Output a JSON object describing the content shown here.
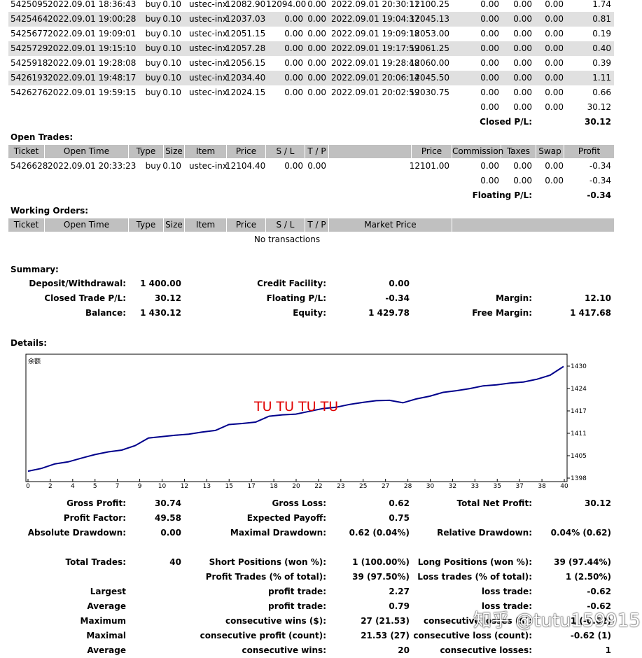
{
  "closed_rows": [
    {
      "ticket": "5425095",
      "open_time": "2022.09.01 18:36:43",
      "type": "buy",
      "size": "0.10",
      "item": "ustec-inx",
      "price": "12082.90",
      "sl": "12094.00",
      "tp": "0.00",
      "close_time": "2022.09.01 20:30:11",
      "close_price": "12100.25",
      "commission": "0.00",
      "taxes": "0.00",
      "swap": "0.00",
      "profit": "1.74"
    },
    {
      "ticket": "5425464",
      "open_time": "2022.09.01 19:00:28",
      "type": "buy",
      "size": "0.10",
      "item": "ustec-inx",
      "price": "12037.03",
      "sl": "0.00",
      "tp": "0.00",
      "close_time": "2022.09.01 19:04:37",
      "close_price": "12045.13",
      "commission": "0.00",
      "taxes": "0.00",
      "swap": "0.00",
      "profit": "0.81"
    },
    {
      "ticket": "5425677",
      "open_time": "2022.09.01 19:09:01",
      "type": "buy",
      "size": "0.10",
      "item": "ustec-inx",
      "price": "12051.15",
      "sl": "0.00",
      "tp": "0.00",
      "close_time": "2022.09.01 19:09:18",
      "close_price": "12053.00",
      "commission": "0.00",
      "taxes": "0.00",
      "swap": "0.00",
      "profit": "0.19"
    },
    {
      "ticket": "5425729",
      "open_time": "2022.09.01 19:15:10",
      "type": "buy",
      "size": "0.10",
      "item": "ustec-inx",
      "price": "12057.28",
      "sl": "0.00",
      "tp": "0.00",
      "close_time": "2022.09.01 19:17:59",
      "close_price": "12061.25",
      "commission": "0.00",
      "taxes": "0.00",
      "swap": "0.00",
      "profit": "0.40"
    },
    {
      "ticket": "5425918",
      "open_time": "2022.09.01 19:28:08",
      "type": "buy",
      "size": "0.10",
      "item": "ustec-inx",
      "price": "12056.15",
      "sl": "0.00",
      "tp": "0.00",
      "close_time": "2022.09.01 19:28:48",
      "close_price": "12060.00",
      "commission": "0.00",
      "taxes": "0.00",
      "swap": "0.00",
      "profit": "0.39"
    },
    {
      "ticket": "5426193",
      "open_time": "2022.09.01 19:48:17",
      "type": "buy",
      "size": "0.10",
      "item": "ustec-inx",
      "price": "12034.40",
      "sl": "0.00",
      "tp": "0.00",
      "close_time": "2022.09.01 20:06:14",
      "close_price": "12045.50",
      "commission": "0.00",
      "taxes": "0.00",
      "swap": "0.00",
      "profit": "1.11"
    },
    {
      "ticket": "5426276",
      "open_time": "2022.09.01 19:59:15",
      "type": "buy",
      "size": "0.10",
      "item": "ustec-inx",
      "price": "12024.15",
      "sl": "0.00",
      "tp": "0.00",
      "close_time": "2022.09.01 20:02:59",
      "close_price": "12030.75",
      "commission": "0.00",
      "taxes": "0.00",
      "swap": "0.00",
      "profit": "0.66"
    }
  ],
  "closed_totals": {
    "commission": "0.00",
    "taxes": "0.00",
    "swap": "0.00",
    "profit": "30.12",
    "label": "Closed P/L:",
    "value": "30.12"
  },
  "open_trades": {
    "title": "Open Trades:",
    "headers": {
      "ticket": "Ticket",
      "open_time": "Open Time",
      "type": "Type",
      "size": "Size",
      "item": "Item",
      "price": "Price",
      "sl": "S / L",
      "tp": "T / P",
      "price2": "Price",
      "commission": "Commission",
      "taxes": "Taxes",
      "swap": "Swap",
      "profit": "Profit"
    },
    "row": {
      "ticket": "5426628",
      "open_time": "2022.09.01 20:33:23",
      "type": "buy",
      "size": "0.10",
      "item": "ustec-inx",
      "price": "12104.40",
      "sl": "0.00",
      "tp": "0.00",
      "price2": "12101.00",
      "commission": "0.00",
      "taxes": "0.00",
      "swap": "0.00",
      "profit": "-0.34"
    },
    "totals": {
      "commission": "0.00",
      "taxes": "0.00",
      "swap": "0.00",
      "profit": "-0.34"
    },
    "floating_label": "Floating P/L:",
    "floating_value": "-0.34"
  },
  "working_orders": {
    "title": "Working Orders:",
    "headers": {
      "ticket": "Ticket",
      "open_time": "Open Time",
      "type": "Type",
      "size": "Size",
      "item": "Item",
      "price": "Price",
      "sl": "S / L",
      "tp": "T / P",
      "market_price": "Market Price"
    },
    "empty": "No transactions"
  },
  "summary": {
    "title": "Summary:",
    "deposit_label": "Deposit/Withdrawal:",
    "deposit_value": "1 400.00",
    "credit_label": "Credit Facility:",
    "credit_value": "0.00",
    "closed_label": "Closed Trade P/L:",
    "closed_value": "30.12",
    "floating_label": "Floating P/L:",
    "floating_value": "-0.34",
    "margin_label": "Margin:",
    "margin_value": "12.10",
    "balance_label": "Balance:",
    "balance_value": "1 430.12",
    "equity_label": "Equity:",
    "equity_value": "1 429.78",
    "free_margin_label": "Free Margin:",
    "free_margin_value": "1 417.68"
  },
  "details_title": "Details:",
  "chart_data": {
    "type": "line",
    "title": "余额",
    "x": [
      0,
      1,
      2,
      3,
      4,
      5,
      6,
      7,
      8,
      9,
      10,
      11,
      12,
      13,
      14,
      15,
      16,
      17,
      18,
      19,
      20,
      21,
      22,
      23,
      24,
      25,
      26,
      27,
      28,
      29,
      30,
      31,
      32,
      33,
      34,
      35,
      36,
      37,
      38,
      39,
      40
    ],
    "y": [
      1399.8,
      1400.6,
      1401.9,
      1402.5,
      1403.6,
      1404.6,
      1405.4,
      1405.9,
      1407.2,
      1409.4,
      1409.8,
      1410.2,
      1410.5,
      1411.1,
      1411.6,
      1413.3,
      1413.6,
      1414.0,
      1415.7,
      1416.1,
      1416.3,
      1417.1,
      1417.9,
      1418.3,
      1419.1,
      1419.7,
      1420.2,
      1420.3,
      1419.6,
      1420.7,
      1421.5,
      1422.6,
      1423.1,
      1423.7,
      1424.5,
      1424.8,
      1425.3,
      1425.6,
      1426.4,
      1427.6,
      1430.1
    ],
    "x_ticks": [
      "0",
      "2",
      "4",
      "5",
      "7",
      "9",
      "10",
      "12",
      "13",
      "15",
      "17",
      "18",
      "20",
      "22",
      "23",
      "25",
      "27",
      "28",
      "30",
      "32",
      "33",
      "35",
      "37",
      "38",
      "40"
    ],
    "y_ticks": [
      "1430",
      "1424",
      "1417",
      "1411",
      "1405",
      "1398"
    ],
    "ylim": [
      1398,
      1430
    ],
    "xlim": [
      0,
      40
    ],
    "line_color": "#00008b",
    "grid": false
  },
  "watermark_text": "TU TU  TU  TU",
  "watermark2_text": "知乎 @tutu159915",
  "stats": {
    "gross_profit_label": "Gross Profit:",
    "gross_profit_value": "30.74",
    "gross_loss_label": "Gross Loss:",
    "gross_loss_value": "0.62",
    "total_net_profit_label": "Total Net Profit:",
    "total_net_profit_value": "30.12",
    "profit_factor_label": "Profit Factor:",
    "profit_factor_value": "49.58",
    "expected_payoff_label": "Expected Payoff:",
    "expected_payoff_value": "0.75",
    "abs_dd_label": "Absolute Drawdown:",
    "abs_dd_value": "0.00",
    "max_dd_label": "Maximal Drawdown:",
    "max_dd_value": "0.62 (0.04%)",
    "rel_dd_label": "Relative Drawdown:",
    "rel_dd_value": "0.04% (0.62)",
    "total_trades_label": "Total Trades:",
    "total_trades_value": "40",
    "short_label": "Short Positions (won %):",
    "short_value": "1 (100.00%)",
    "long_label": "Long Positions (won %):",
    "long_value": "39 (97.44%)",
    "profit_trades_label": "Profit Trades (% of total):",
    "profit_trades_value": "39 (97.50%)",
    "loss_trades_label": "Loss trades (% of total):",
    "loss_trades_value": "1 (2.50%)",
    "largest_label": "Largest",
    "largest_profit_label": "profit trade:",
    "largest_profit_value": "2.27",
    "largest_loss_label": "loss trade:",
    "largest_loss_value": "-0.62",
    "average_label": "Average",
    "average_profit_label": "profit trade:",
    "average_profit_value": "0.79",
    "average_loss_label": "loss trade:",
    "average_loss_value": "-0.62",
    "maximum_label": "Maximum",
    "max_wins_label": "consecutive wins ($):",
    "max_wins_value": "27 (21.53)",
    "max_losses_label": "consecutive losses ($):",
    "max_losses_value": "1 (-0.62)",
    "maximal_label": "Maximal",
    "maximal_profit_label": "consecutive profit (count):",
    "maximal_profit_value": "21.53 (27)",
    "maximal_loss_label": "consecutive loss (count):",
    "maximal_loss_value": "-0.62 (1)",
    "average2_label": "Average",
    "avg_wins_label": "consecutive wins:",
    "avg_wins_value": "20",
    "avg_losses_label": "consecutive losses:",
    "avg_losses_value": "1"
  }
}
